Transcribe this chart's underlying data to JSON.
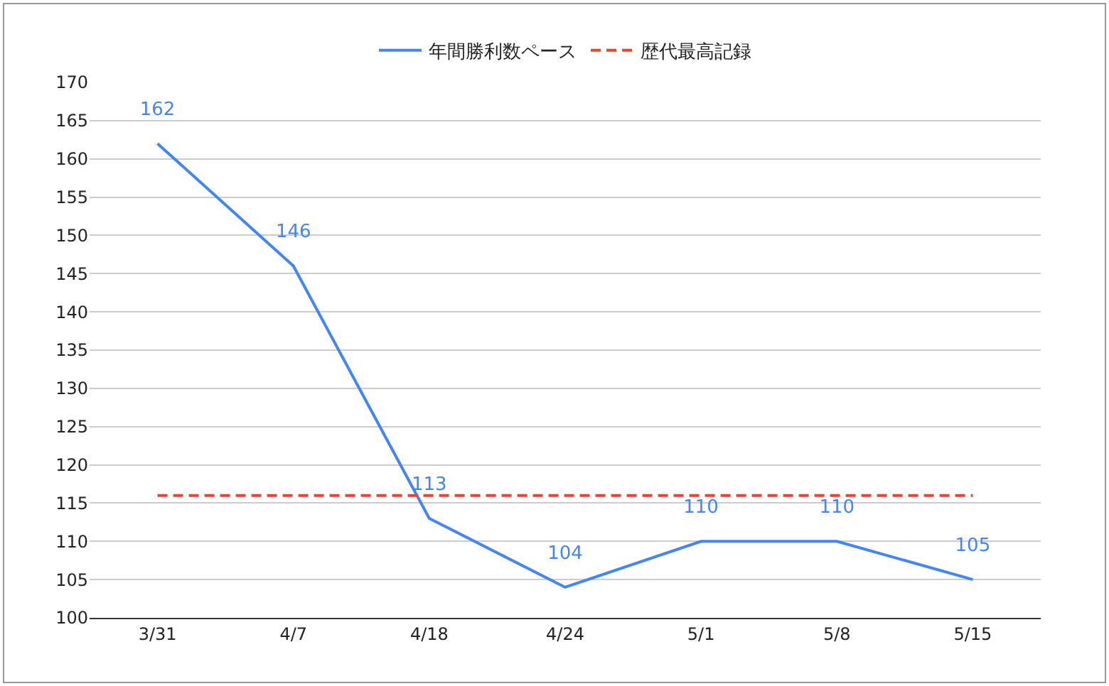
{
  "chart_data": {
    "type": "line",
    "categories": [
      "3/31",
      "4/7",
      "4/18",
      "4/24",
      "5/1",
      "5/8",
      "5/15"
    ],
    "series": [
      {
        "name": "年間勝利数ペース",
        "color": "#4285f4",
        "values": [
          162,
          146,
          113,
          104,
          110,
          110,
          105
        ],
        "value_labels": [
          "162",
          "146",
          "113",
          "104",
          "110",
          "110",
          "105"
        ],
        "line_style": "solid"
      },
      {
        "name": "歴代最高記録",
        "color": "#ea4335",
        "values": [
          116,
          116,
          116,
          116,
          116,
          116,
          116
        ],
        "line_style": "dashed"
      }
    ],
    "ylim": [
      100,
      170
    ],
    "yticks": [
      100,
      105,
      110,
      115,
      120,
      125,
      130,
      135,
      140,
      145,
      150,
      155,
      160,
      165,
      170
    ],
    "grid": "y",
    "legend": "top",
    "marker": "none"
  }
}
